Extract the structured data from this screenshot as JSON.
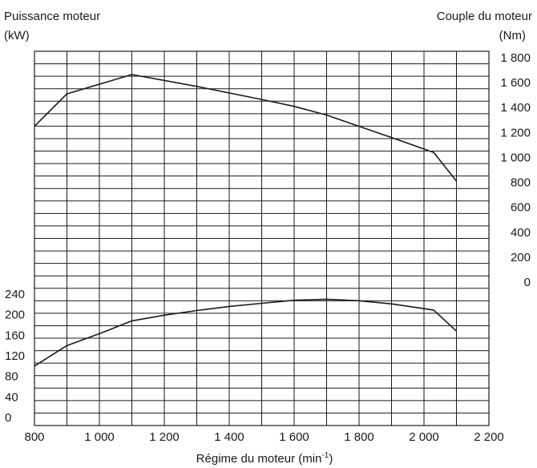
{
  "chart_data": {
    "type": "line",
    "title": "",
    "xlabel": "Régime du moteur (min",
    "xlabel_sup": "-1",
    "xlabel_close": ")",
    "ylabel_left": "Puissance moteur",
    "ylabel_left_unit": "(kW)",
    "ylabel_right": "Couple du moteur",
    "ylabel_right_unit": "(Nm)",
    "xlim": [
      800,
      2200
    ],
    "x_ticks": [
      800,
      1000,
      1200,
      1400,
      1600,
      1800,
      2000,
      2200
    ],
    "x_tick_labels": [
      "800",
      "1 000",
      "1 200",
      "1 400",
      "1 600",
      "1 800",
      "2 000",
      "2 200"
    ],
    "left_ticks": [
      0,
      40,
      80,
      120,
      160,
      200,
      240
    ],
    "left_tick_labels": [
      "0",
      "40",
      "80",
      "120",
      "160",
      "200",
      "240"
    ],
    "right_ticks": [
      0,
      200,
      400,
      600,
      800,
      1000,
      1200,
      1400,
      1600,
      1800
    ],
    "right_tick_labels": [
      "0",
      "200",
      "400",
      "600",
      "800",
      "1 000",
      "1 200",
      "1 400",
      "1 600",
      "1 800"
    ],
    "grid": true,
    "series": [
      {
        "axis": "right",
        "x": [
          800,
          900,
          1100,
          1300,
          1500,
          1600,
          1700,
          1800,
          1900,
          2030,
          2100
        ],
        "values": [
          1250,
          1510,
          1665,
          1570,
          1465,
          1410,
          1340,
          1250,
          1160,
          1040,
          810
        ]
      },
      {
        "axis": "left",
        "x": [
          800,
          900,
          1000,
          1100,
          1200,
          1300,
          1400,
          1500,
          1600,
          1700,
          1800,
          1900,
          2030,
          2100
        ],
        "values": [
          100,
          140,
          163,
          188,
          199,
          208,
          216,
          222,
          228,
          230,
          227,
          221,
          209,
          168
        ]
      }
    ]
  }
}
